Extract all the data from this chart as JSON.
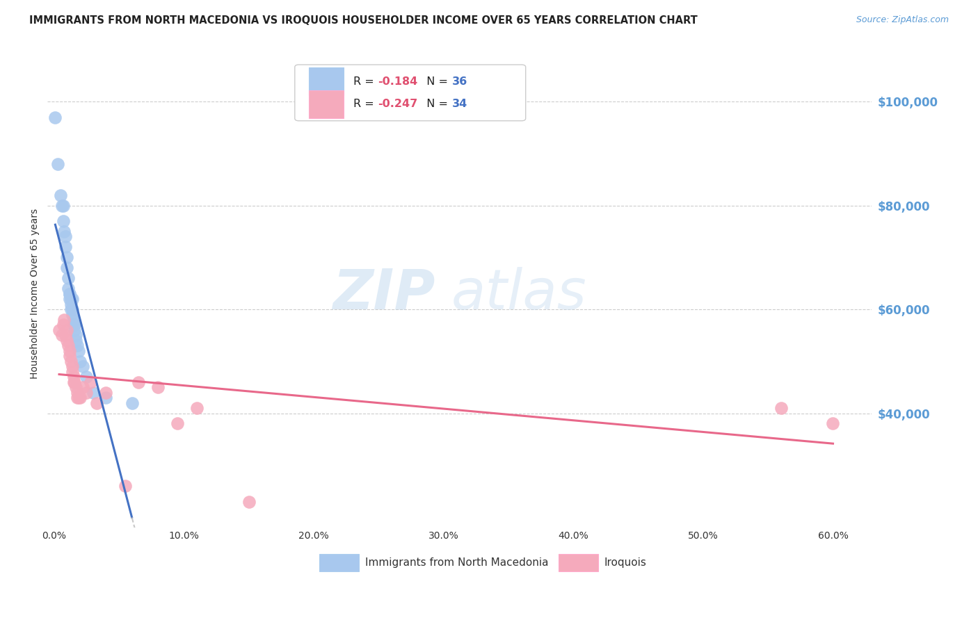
{
  "title": "IMMIGRANTS FROM NORTH MACEDONIA VS IROQUOIS HOUSEHOLDER INCOME OVER 65 YEARS CORRELATION CHART",
  "source": "Source: ZipAtlas.com",
  "ylabel": "Householder Income Over 65 years",
  "xlabel_ticks": [
    "0.0%",
    "10.0%",
    "20.0%",
    "30.0%",
    "40.0%",
    "50.0%",
    "60.0%"
  ],
  "xlabel_vals": [
    0.0,
    0.1,
    0.2,
    0.3,
    0.4,
    0.5,
    0.6
  ],
  "ytick_labels": [
    "$40,000",
    "$60,000",
    "$80,000",
    "$100,000"
  ],
  "ytick_vals": [
    40000,
    60000,
    80000,
    100000
  ],
  "ymin": 18000,
  "ymax": 108000,
  "xmin": -0.005,
  "xmax": 0.63,
  "legend1_r": "-0.184",
  "legend1_n": "36",
  "legend2_r": "-0.247",
  "legend2_n": "34",
  "blue_color": "#A8C8EE",
  "pink_color": "#F5AABC",
  "trend_blue": "#4472C4",
  "trend_pink": "#E8688A",
  "trend_gray": "#BBBBBB",
  "watermark_zip": "ZIP",
  "watermark_atlas": "atlas",
  "blue_scatter_x": [
    0.001,
    0.003,
    0.005,
    0.006,
    0.007,
    0.007,
    0.008,
    0.009,
    0.009,
    0.01,
    0.01,
    0.011,
    0.011,
    0.012,
    0.012,
    0.012,
    0.013,
    0.013,
    0.013,
    0.014,
    0.014,
    0.014,
    0.015,
    0.015,
    0.016,
    0.016,
    0.017,
    0.017,
    0.018,
    0.019,
    0.02,
    0.022,
    0.025,
    0.03,
    0.04,
    0.06
  ],
  "blue_scatter_y": [
    97000,
    88000,
    82000,
    80000,
    80000,
    77000,
    75000,
    74000,
    72000,
    70000,
    68000,
    66000,
    64000,
    63000,
    63000,
    62000,
    61000,
    62000,
    60000,
    62000,
    60000,
    59000,
    58000,
    57000,
    57000,
    56000,
    55000,
    54000,
    53000,
    52000,
    50000,
    49000,
    47000,
    44000,
    43000,
    42000
  ],
  "pink_scatter_x": [
    0.004,
    0.006,
    0.007,
    0.008,
    0.009,
    0.01,
    0.01,
    0.011,
    0.012,
    0.012,
    0.013,
    0.014,
    0.014,
    0.015,
    0.015,
    0.016,
    0.017,
    0.018,
    0.018,
    0.019,
    0.02,
    0.022,
    0.025,
    0.028,
    0.033,
    0.04,
    0.055,
    0.065,
    0.08,
    0.095,
    0.11,
    0.15,
    0.56,
    0.6
  ],
  "pink_scatter_y": [
    56000,
    55000,
    57000,
    58000,
    55000,
    56000,
    54000,
    53000,
    52000,
    51000,
    50000,
    49000,
    48000,
    47000,
    46000,
    46000,
    45000,
    44000,
    43000,
    43000,
    43000,
    45000,
    44000,
    46000,
    42000,
    44000,
    26000,
    46000,
    45000,
    38000,
    41000,
    23000,
    41000,
    38000
  ],
  "background_color": "#FFFFFF"
}
